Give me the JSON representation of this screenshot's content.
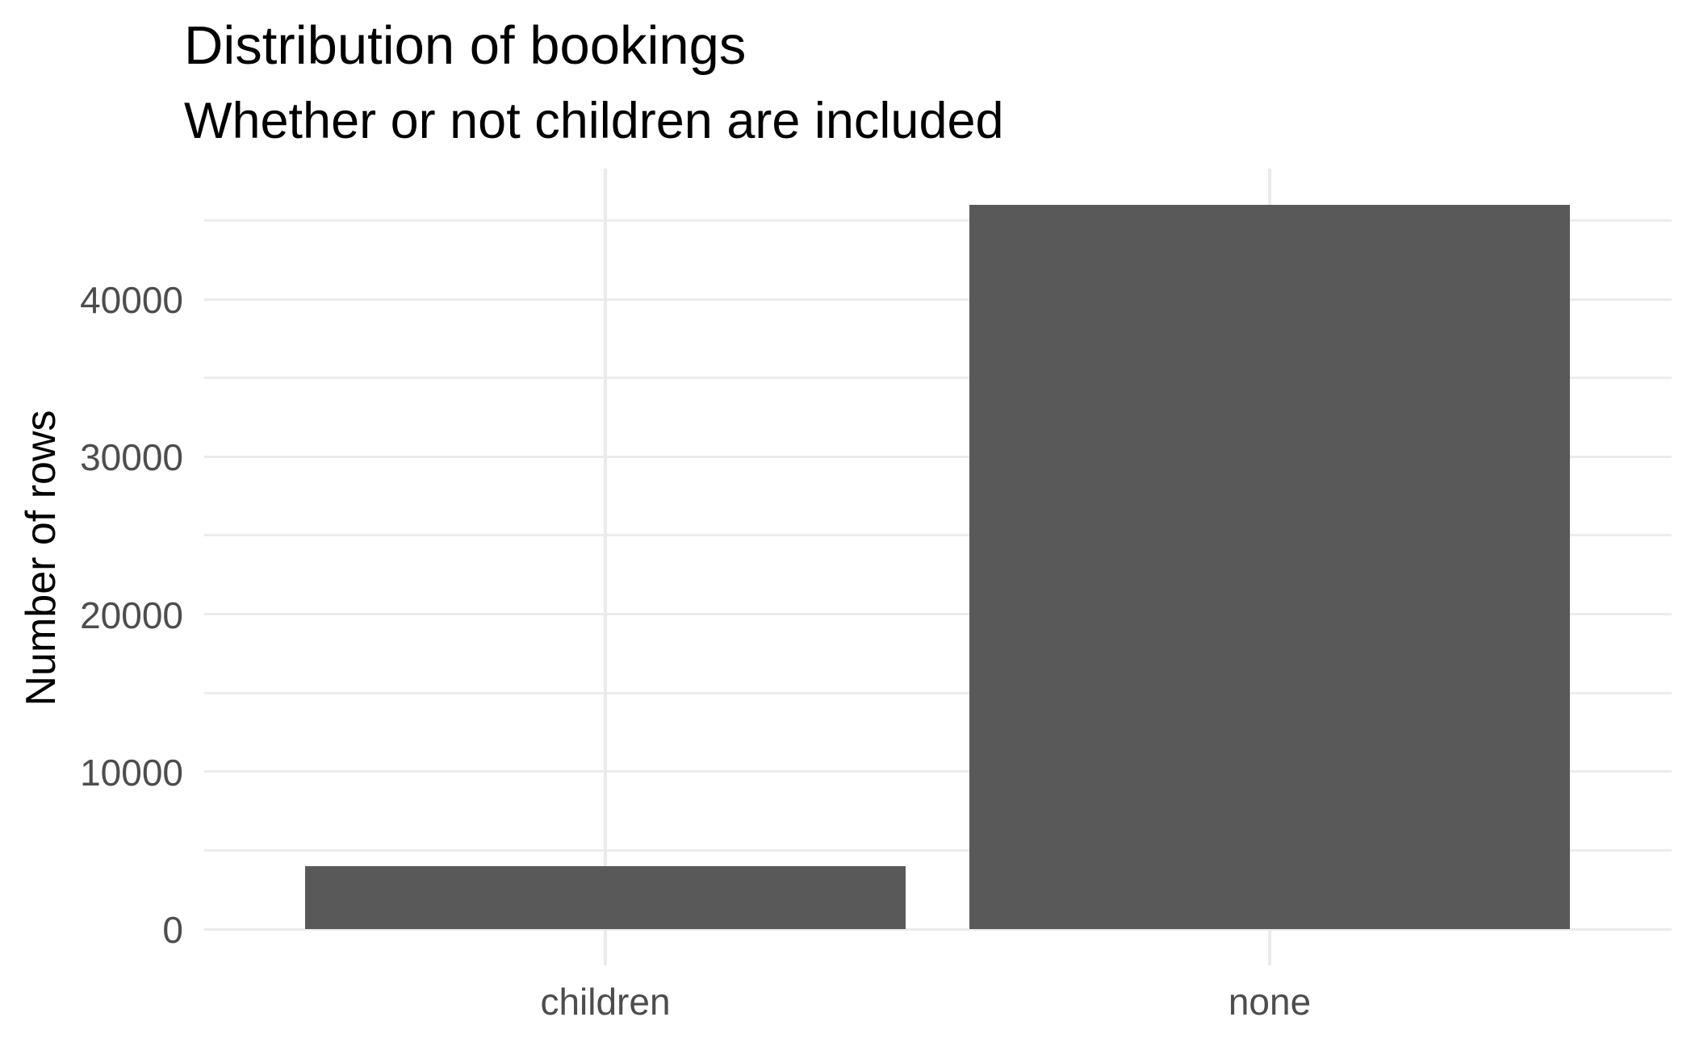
{
  "chart_data": {
    "type": "bar",
    "title": "Distribution of bookings",
    "subtitle": "Whether or not children are included",
    "xlabel": "",
    "ylabel": "Number of rows",
    "categories": [
      "children",
      "none"
    ],
    "values": [
      4000,
      46000
    ],
    "ylim": [
      0,
      48300
    ],
    "y_major_ticks": [
      0,
      10000,
      20000,
      30000,
      40000
    ],
    "y_minor_ticks": [
      5000,
      15000,
      25000,
      35000,
      45000
    ],
    "grid": "horizontal major + minor lines, vertical major line at each category",
    "legend": "none",
    "colors": {
      "bar": "#595959",
      "gridline_major": "#EBEBEB",
      "gridline_minor": "#EDEDED",
      "axis_text": "#4D4D4D",
      "title_text": "#000000",
      "background": "#FFFFFF"
    }
  }
}
